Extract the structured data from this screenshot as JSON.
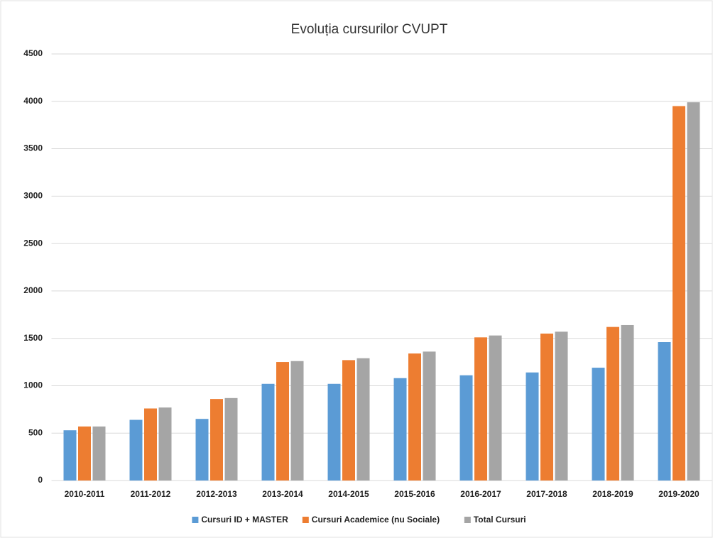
{
  "chart_data": {
    "type": "bar",
    "title": "Evoluția cursurilor CVUPT",
    "categories": [
      "2010-2011",
      "2011-2012",
      "2012-2013",
      "2013-2014",
      "2014-2015",
      "2015-2016",
      "2016-2017",
      "2017-2018",
      "2018-2019",
      "2019-2020"
    ],
    "series": [
      {
        "name": "Cursuri ID + MASTER",
        "color": "#5b9bd5",
        "values": [
          530,
          640,
          650,
          1020,
          1020,
          1080,
          1110,
          1140,
          1190,
          1460
        ]
      },
      {
        "name": "Cursuri Academice (nu Sociale)",
        "color": "#ed7d31",
        "values": [
          570,
          760,
          860,
          1250,
          1270,
          1340,
          1510,
          1550,
          1620,
          3950
        ]
      },
      {
        "name": "Total Cursuri",
        "color": "#a5a5a5",
        "values": [
          570,
          770,
          870,
          1260,
          1290,
          1360,
          1530,
          1570,
          1640,
          3990
        ]
      }
    ],
    "ylim": [
      0,
      4500
    ],
    "yticks": [
      0,
      500,
      1000,
      1500,
      2000,
      2500,
      3000,
      3500,
      4000,
      4500
    ],
    "grid": true,
    "legend": "bottom"
  }
}
